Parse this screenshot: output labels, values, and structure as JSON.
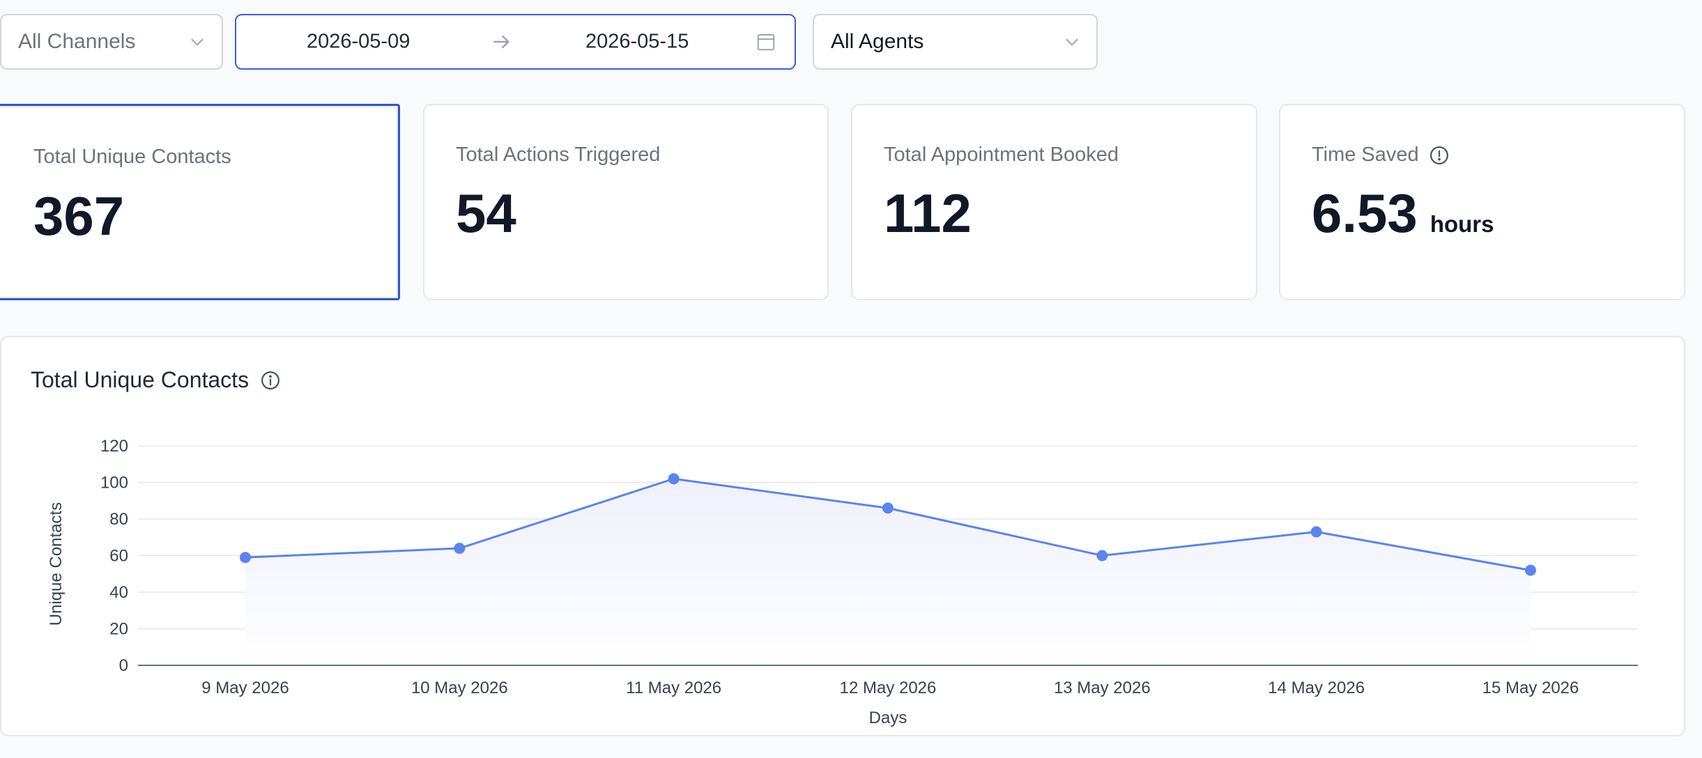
{
  "filters": {
    "channels": {
      "label": "All Channels"
    },
    "dates": {
      "start": "2026-05-09",
      "end": "2026-05-15"
    },
    "agents": {
      "label": "All Agents"
    }
  },
  "stats": [
    {
      "title": "Total Unique Contacts",
      "value": "367",
      "unit": ""
    },
    {
      "title": "Total Actions Triggered",
      "value": "54",
      "unit": ""
    },
    {
      "title": "Total Appointment Booked",
      "value": "112",
      "unit": ""
    },
    {
      "title": "Time Saved",
      "value": "6.53",
      "unit": "hours"
    }
  ],
  "panel": {
    "title": "Total Unique Contacts"
  },
  "colors": {
    "accent": "#3b5ee0",
    "line": "#5b84ee",
    "area": "#eef0fb"
  },
  "chart_data": {
    "type": "area",
    "categories": [
      "9 May 2026",
      "10 May 2026",
      "11 May 2026",
      "12 May 2026",
      "13 May 2026",
      "14 May 2026",
      "15 May 2026"
    ],
    "series": [
      {
        "values": [
          59,
          64,
          102,
          86,
          60,
          73,
          52
        ]
      }
    ],
    "xlabel": "Days",
    "ylabel": "Unique Contacts",
    "ylim": [
      0,
      120
    ],
    "yticks": [
      0,
      20,
      40,
      60,
      80,
      100,
      120
    ],
    "grid": true
  }
}
